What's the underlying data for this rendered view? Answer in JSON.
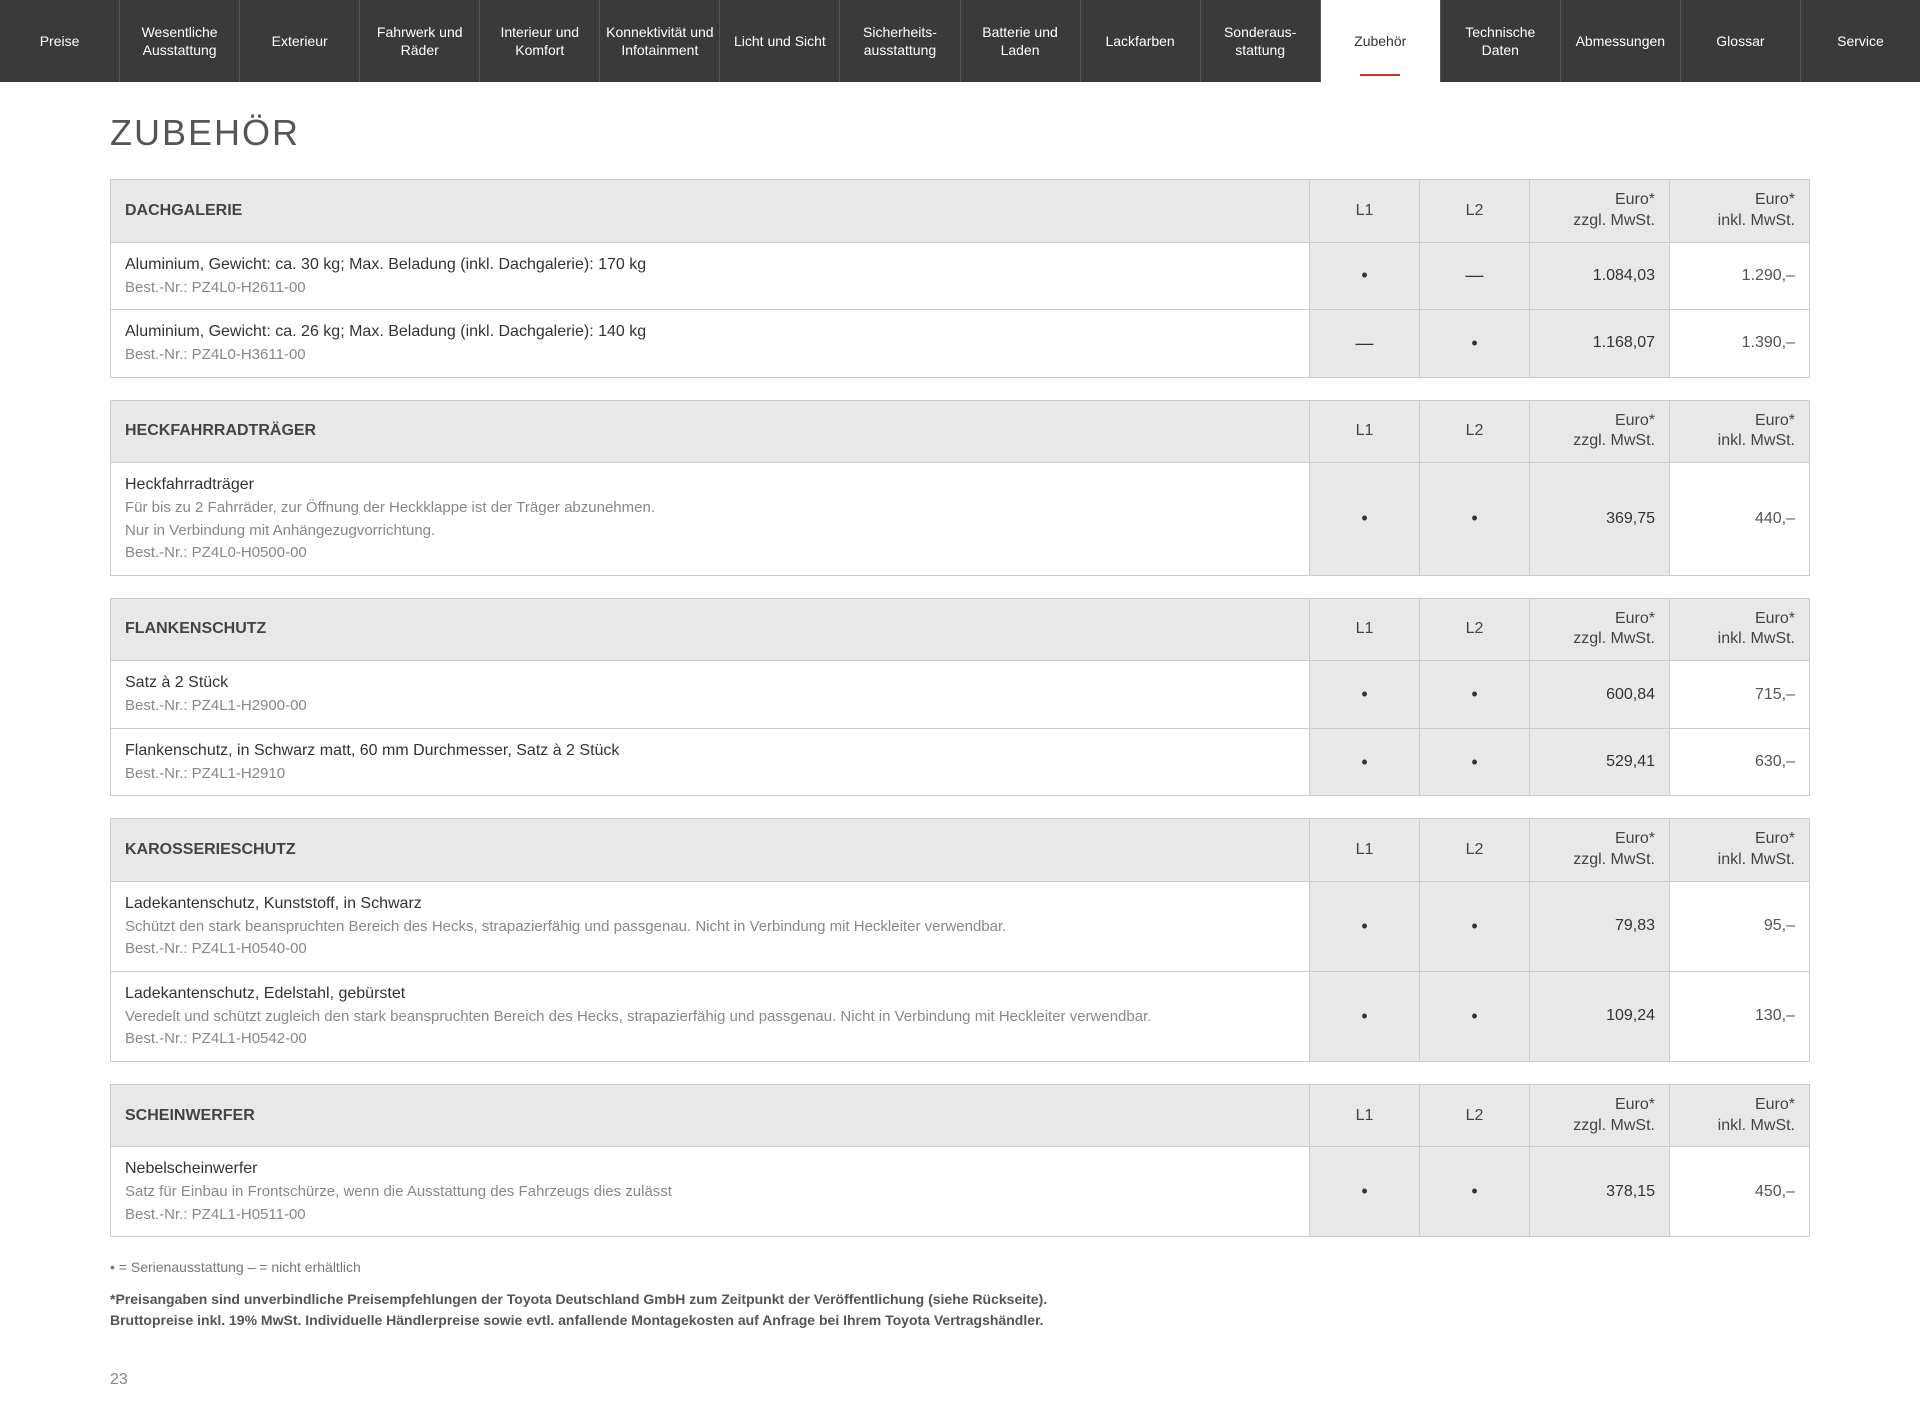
{
  "nav": {
    "items": [
      "Preise",
      "Wesentliche Ausstattung",
      "Exterieur",
      "Fahrwerk und Räder",
      "Interieur und Komfort",
      "Konnektivität und Infotainment",
      "Licht und Sicht",
      "Sicherheits-ausstattung",
      "Batterie und Laden",
      "Lackfarben",
      "Sonderaus-stattung",
      "Zubehör",
      "Technische Daten",
      "Abmessungen",
      "Glossar",
      "Service"
    ],
    "active_index": 11
  },
  "page_title": "ZUBEHÖR",
  "columns": {
    "l1": "L1",
    "l2": "L2",
    "price_ex": "Euro*\nzzgl. MwSt.",
    "price_in": "Euro*\ninkl. MwSt."
  },
  "marks": {
    "dot": "•",
    "dash": "—"
  },
  "sections": [
    {
      "title": "DACHGALERIE",
      "rows": [
        {
          "lines": [
            "Aluminium, Gewicht: ca. 30 kg; Max. Beladung (inkl. Dachgalerie): 170 kg",
            "Best.-Nr.: PZ4L0-H2611-00"
          ],
          "l1": "dot",
          "l2": "dash",
          "ex": "1.084,03",
          "in": "1.290,–"
        },
        {
          "lines": [
            "Aluminium, Gewicht: ca. 26 kg; Max. Beladung (inkl. Dachgalerie): 140 kg",
            "Best.-Nr.: PZ4L0-H3611-00"
          ],
          "l1": "dash",
          "l2": "dot",
          "ex": "1.168,07",
          "in": "1.390,–"
        }
      ]
    },
    {
      "title": "HECKFAHRRADTRÄGER",
      "rows": [
        {
          "lines": [
            "Heckfahrradträger",
            "Für bis zu 2 Fahrräder, zur Öffnung der Heckklappe ist der Träger abzunehmen.",
            "Nur in Verbindung mit Anhängezugvorrichtung.",
            "Best.-Nr.: PZ4L0-H0500-00"
          ],
          "l1": "dot",
          "l2": "dot",
          "ex": "369,75",
          "in": "440,–"
        }
      ]
    },
    {
      "title": "FLANKENSCHUTZ",
      "rows": [
        {
          "lines": [
            "Satz à 2 Stück",
            "Best.-Nr.: PZ4L1-H2900-00"
          ],
          "l1": "dot",
          "l2": "dot",
          "ex": "600,84",
          "in": "715,–"
        },
        {
          "lines": [
            "Flankenschutz, in Schwarz matt, 60 mm Durchmesser, Satz à 2 Stück",
            "Best.-Nr.: PZ4L1-H2910"
          ],
          "l1": "dot",
          "l2": "dot",
          "ex": "529,41",
          "in": "630,–"
        }
      ]
    },
    {
      "title": "KAROSSERIESCHUTZ",
      "rows": [
        {
          "lines": [
            "Ladekantenschutz, Kunststoff, in Schwarz",
            "Schützt den stark beanspruchten Bereich des Hecks, strapazierfähig und passgenau. Nicht in Verbindung mit Heckleiter verwendbar.",
            "Best.-Nr.: PZ4L1-H0540-00"
          ],
          "l1": "dot",
          "l2": "dot",
          "ex": "79,83",
          "in": "95,–"
        },
        {
          "lines": [
            "Ladekantenschutz, Edelstahl, gebürstet",
            "Veredelt und schützt zugleich den stark beanspruchten Bereich des Hecks, strapazierfähig und passgenau. Nicht in Verbindung mit Heckleiter verwendbar.",
            "Best.-Nr.: PZ4L1-H0542-00"
          ],
          "l1": "dot",
          "l2": "dot",
          "ex": "109,24",
          "in": "130,–"
        }
      ]
    },
    {
      "title": "SCHEINWERFER",
      "rows": [
        {
          "lines": [
            "Nebelscheinwerfer",
            "Satz für Einbau in Frontschürze, wenn die Ausstattung des Fahrzeugs dies zulässt",
            "Best.-Nr.: PZ4L1-H0511-00"
          ],
          "l1": "dot",
          "l2": "dot",
          "ex": "378,15",
          "in": "450,–"
        }
      ]
    }
  ],
  "legend": "• = Serienausstattung    – = nicht erhältlich",
  "footnote": [
    "*Preisangaben sind unverbindliche Preisempfehlungen der Toyota Deutschland GmbH zum Zeitpunkt der Veröffentlichung (siehe Rückseite).",
    "Bruttopreise inkl. 19% MwSt. Individuelle Händlerpreise sowie evtl. anfallende Montagekosten auf Anfrage bei Ihrem Toyota Vertragshändler."
  ],
  "page_number": "23"
}
